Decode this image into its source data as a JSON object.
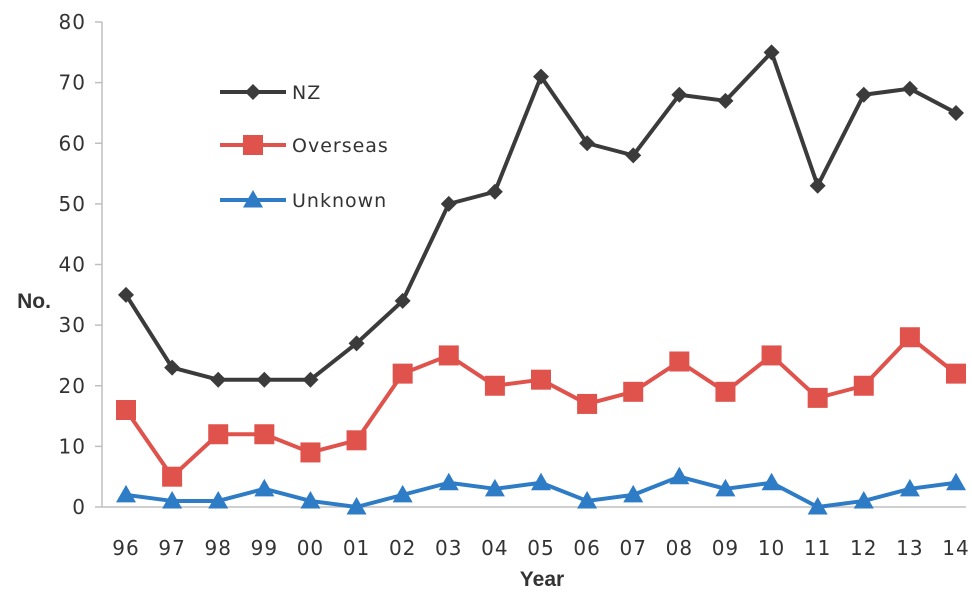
{
  "chart_data": {
    "type": "line",
    "title": "",
    "xlabel": "Year",
    "ylabel": "No.",
    "ylim": [
      0,
      80
    ],
    "yticks": [
      0,
      10,
      20,
      30,
      40,
      50,
      60,
      70,
      80
    ],
    "ytick_labels": [
      "0",
      "10",
      "20",
      "30",
      "40",
      "50",
      "60",
      "70",
      "80"
    ],
    "categories": [
      "96",
      "97",
      "98",
      "99",
      "00",
      "01",
      "02",
      "03",
      "04",
      "05",
      "06",
      "07",
      "08",
      "09",
      "10",
      "11",
      "12",
      "13",
      "14"
    ],
    "grid": false,
    "legend_position": "top-left",
    "series": [
      {
        "name": "NZ",
        "color": "#3b3b3b",
        "marker": "diamond",
        "values": [
          35,
          23,
          21,
          21,
          21,
          27,
          34,
          50,
          52,
          71,
          60,
          58,
          68,
          67,
          75,
          53,
          68,
          69,
          65
        ]
      },
      {
        "name": "Overseas",
        "color": "#e0524c",
        "marker": "square",
        "values": [
          16,
          5,
          12,
          12,
          9,
          11,
          22,
          25,
          20,
          21,
          17,
          19,
          24,
          19,
          25,
          18,
          20,
          28,
          22
        ]
      },
      {
        "name": "Unknown",
        "color": "#2e7cc6",
        "marker": "triangle",
        "values": [
          2,
          1,
          1,
          3,
          1,
          0,
          2,
          4,
          3,
          4,
          1,
          2,
          5,
          3,
          4,
          0,
          1,
          3,
          4
        ]
      }
    ]
  }
}
